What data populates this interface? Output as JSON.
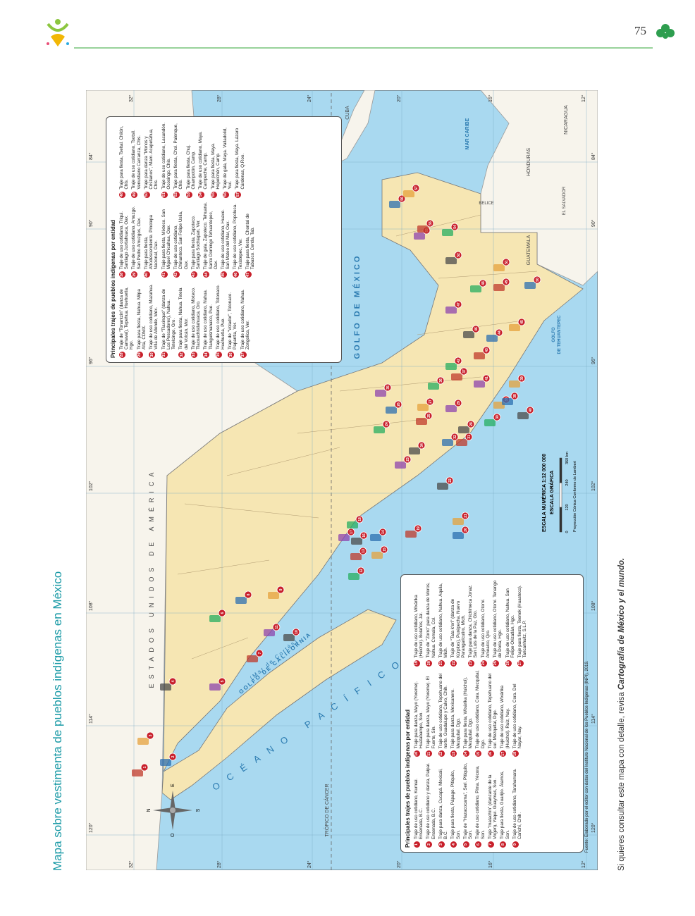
{
  "header": {
    "page_number": "75"
  },
  "title": "Mapa sobre vestimenta de pueblos indígenas en México",
  "map": {
    "labels": {
      "usa": "ESTADOS UNIDOS DE AMÉRICA",
      "gulf_mexico": "GOLFO DE MÉXICO",
      "pacific": "OCÉANO PACÍFICO",
      "gulf_california": "GOLFO DE CALIFORNIA",
      "mar_cortes": "(Mar de Cortés)",
      "tehuantepec_1": "GOLFO",
      "tehuantepec_2": "DE TEHUANTEPEC",
      "caribbean": "MAR CARIBE",
      "cuba": "CUBA",
      "belize": "BELICE",
      "guatemala": "GUATEMALA",
      "honduras": "HONDURAS",
      "el_salvador": "EL SALVADOR",
      "nicaragua": "NICARAGUA",
      "tropic": "TRÓPICO DE CÁNCER"
    },
    "longitudes": [
      "120°",
      "114°",
      "108°",
      "102°",
      "96°",
      "90°",
      "84°"
    ],
    "latitudes": [
      "32°",
      "28°",
      "24°",
      "20°",
      "16°",
      "12°"
    ],
    "compass": {
      "north": "N",
      "south": "S",
      "east": "E",
      "west": "O"
    },
    "scale": {
      "numeric": "ESCALA NUMÉRICA 1:12 000 000",
      "graphic": "ESCALA GRÁFICA",
      "ticks": [
        "0",
        "120",
        "240",
        "360 km"
      ],
      "projection": "Proyección Cónica Conforme de Lambert"
    }
  },
  "legend_1": {
    "title": "Principales trajes de pueblos indígenas por entidad",
    "items": [
      {
        "number": 1,
        "text": "Traje de uso cotidiano, Kumiai. Ensenada, B.C."
      },
      {
        "number": 2,
        "text": "Traje de uso cotidiano y danza, Paipai. Ensenada, B.C."
      },
      {
        "number": 3,
        "text": "Traje para danza, Cucapá. Mexicali, B.C."
      },
      {
        "number": 4,
        "text": "Traje para fiesta, Pápago. Pitiquito, Son."
      },
      {
        "number": 5,
        "text": "Traje de \"Hazacocama\", Seri. Pitiquito, Son."
      },
      {
        "number": 6,
        "text": "Traje de uso cotidiano, Pima. Yécora, Son."
      },
      {
        "number": 7,
        "text": "Traje \"matachín\" (danzante de la Virgen), Yaqui. Guaymas, Son."
      },
      {
        "number": 8,
        "text": "Traje para fiesta, Guarijío. Álamos, Son."
      },
      {
        "number": 9,
        "text": "Traje de uso cotidiano, Tarahumara. Carichí, Chih."
      },
      {
        "number": 10,
        "text": "Traje para danza, Mayo (Yoreme). Huatabampo, Son."
      },
      {
        "number": 11,
        "text": "Traje para danza, Mayo (Yoreme). El Fuerte, Sin."
      },
      {
        "number": 12,
        "text": "Traje de uso cotidiano, Tepehuano del norte. Guadalupe y Calvo, Chih."
      },
      {
        "number": 13,
        "text": "Traje para danza, Mexicanero. Mezquital, Dgo."
      },
      {
        "number": 14,
        "text": "Traje para fiesta, Wixárika (Huichol). Mezquital, Dgo."
      },
      {
        "number": 15,
        "text": "Traje de uso cotidiano, Cora. Mezquital, Dgo."
      },
      {
        "number": 16,
        "text": "Traje de uso cotidiano, Tepehuano del sur. Mezquital, Dgo."
      },
      {
        "number": 17,
        "text": "Traje de uso cotidiano, Wixárika (Huichol). Ruiz, Nay."
      },
      {
        "number": 18,
        "text": "Traje de uso cotidiano, Cora. Del Nayar, Nay."
      },
      {
        "number": 19,
        "text": "Traje de uso cotidiano, Wixárika (Huichol). Bolaños, Jal."
      },
      {
        "number": 20,
        "text": "Traje de \"Zorro\" para danza de Moros, Nahua. Comala, Col."
      },
      {
        "number": 21,
        "text": "Traje de uso cotidiano, Nahua. Aquila, Mich."
      },
      {
        "number": 22,
        "text": "Traje de \"Tata k'eri\" (danza de Kúrpites), Purépecha. Nuevo Parangaricutiro, Mich."
      },
      {
        "number": 23,
        "text": "Traje para danza, Chichimeca Jonaz. San Luis de la Paz, Gto."
      },
      {
        "number": 24,
        "text": "Traje de uso cotidiano, Otomí. Amealco, Qro."
      },
      {
        "number": 25,
        "text": "Traje de uso cotidiano, Otomí. Tenango de Doria, Hgo."
      },
      {
        "number": 26,
        "text": "Traje de uso cotidiano, Nahua. San Felipe Orizatlán, Hgo."
      },
      {
        "number": 27,
        "text": "Traje para fiesta, Teenek (Huasteco). Tancanhuitz, S.L.P."
      }
    ]
  },
  "legend_2": {
    "title": "Principales trajes de pueblos indígenas por entidad",
    "items": [
      {
        "number": 28,
        "text": "Traje de \"Tonantzin\" (danza de Carnaval), Tepehua. Huehuetla, Hgo."
      },
      {
        "number": 29,
        "text": "Traje para fiesta, Nahua. Milpa Alta, CDMX."
      },
      {
        "number": 30,
        "text": "Traje de uso cotidiano, Mazahua. Villa de Allende, Méx."
      },
      {
        "number": 31,
        "text": "Traje de \"Tlaxinque\" (danza de Los Pescadores), Nahua. Tetelcingo, Gro."
      },
      {
        "number": 32,
        "text": "Traje para fiesta, Nahua. Tetela del Volcán, Mor."
      },
      {
        "number": 33,
        "text": "Traje de uso cotidiano, Mixteco. Tlacoachistlahuaca, Gro."
      },
      {
        "number": 34,
        "text": "Traje de uso cotidiano, Nahua. Tlanguismanalco, Pue."
      },
      {
        "number": 35,
        "text": "Traje de uso cotidiano, Totonaco. Huehuetla, Pue."
      },
      {
        "number": 36,
        "text": "Traje de \"Volador\", Totonaco. Papantla, Ver."
      },
      {
        "number": 37,
        "text": "Traje de uso cotidiano, Nahua. Zongolica, Ver."
      },
      {
        "number": 38,
        "text": "Traje de uso cotidiano, Triqui. Santiago Juxtlahuaca, Oax."
      },
      {
        "number": 39,
        "text": "Traje de uso cotidiano, Amuzgo. San Pedro Amuzgos, Oax."
      },
      {
        "number": 40,
        "text": "Traje para fiesta, Afrodescendiente. Pinotepa Nacional, Oax."
      },
      {
        "number": 41,
        "text": "Traje para fiesta, Mixteco. San Miguel Chicahua, Oax."
      },
      {
        "number": 42,
        "text": "Traje de uso cotidiano, Chinanteco. San Felipe Usila, Oax."
      },
      {
        "number": 43,
        "text": "Traje para fiesta, Zapoteco. Santiago Sochiapan, Ver."
      },
      {
        "number": 44,
        "text": "Traje de gala, Zapoteco. Tehuana. Santo Domingo Tehuantepec, Oax."
      },
      {
        "number": 45,
        "text": "Traje de uso cotidiano, Huave. San Mateo del Mar, Oax."
      },
      {
        "number": 46,
        "text": "Traje de uso cotidiano, Popoluca. Texistepec, Ver."
      },
      {
        "number": 47,
        "text": "Traje para fiesta, Chontal de Tabasco. Centla, Tab."
      },
      {
        "number": 48,
        "text": "Traje para fiesta, Tseltal. Chilón, Chis."
      },
      {
        "number": 49,
        "text": "Traje de uso cotidiano, Tsotsil. Venustiano Carranza, Chis."
      },
      {
        "number": 50,
        "text": "Traje para danza \"Monos y Cristianos\", Mam. Acapetahua, Chis."
      },
      {
        "number": 51,
        "text": "Traje de uso cotidiano, Lacandón. Ocosingo, Chis."
      },
      {
        "number": 52,
        "text": "Traje para fiesta, Chol. Palenque, Chis."
      },
      {
        "number": 53,
        "text": "Traje para fiesta, Chuj. Champotón, Camp."
      },
      {
        "number": 54,
        "text": "Traje de uso cotidiano, Maya. Campeche, Camp."
      },
      {
        "number": 55,
        "text": "Traje para fiesta, Maya. Hopelchén, Camp."
      },
      {
        "number": 56,
        "text": "Traje de gala, Maya. Valladolid, Yuc."
      },
      {
        "number": 57,
        "text": "Traje para fiesta, Maya. Lázaro Cárdenas, Q.Roo."
      }
    ]
  },
  "source": "Fuente: Elaborado por el editor con datos del Instituto Nacional de los Pueblos Indígenas (INPI), 2019.",
  "footer": {
    "text": "Si quieres consultar este mapa con detalle, revisa ",
    "book": "Cartografía de México y el mundo."
  }
}
